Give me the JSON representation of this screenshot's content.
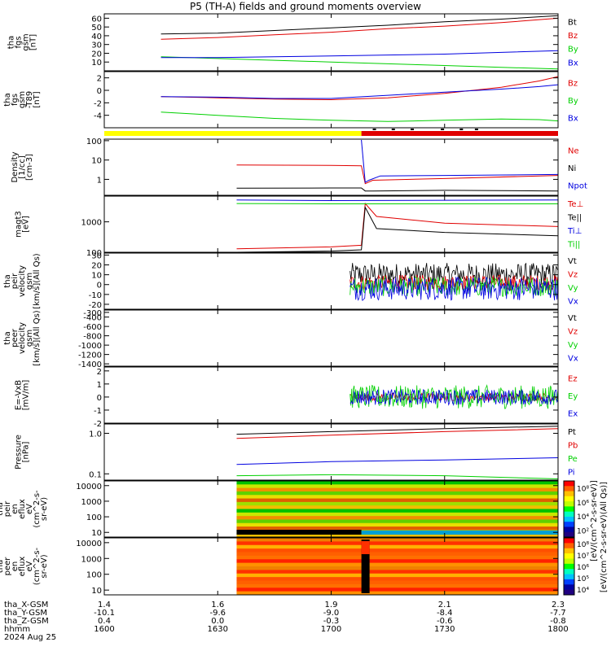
{
  "title": "P5 (TH-A) fields and ground moments overview",
  "colors": {
    "black": "#000000",
    "red": "#e00000",
    "green": "#00d000",
    "blue": "#0000e0",
    "yellow": "#ffff00",
    "axis": "#000000"
  },
  "chart_data": [
    {
      "type": "line",
      "panel_id": "fgs",
      "ylabel_lines": [
        "tha",
        "fgs",
        "gsm",
        "[nT]"
      ],
      "ylim": [
        0,
        65
      ],
      "ticks": [
        {
          "v": 10,
          "label": "10"
        },
        {
          "v": 20,
          "label": "20"
        },
        {
          "v": 30,
          "label": "30"
        },
        {
          "v": 40,
          "label": "40"
        },
        {
          "v": 50,
          "label": "50"
        },
        {
          "v": 60,
          "label": "60"
        }
      ],
      "x_start_hhmm": "1615",
      "series": [
        {
          "name": "Bt",
          "color": "black",
          "x": [
            1615,
            1630,
            1645,
            1700,
            1715,
            1730,
            1745,
            1800
          ],
          "values": [
            42,
            43,
            46,
            49,
            52,
            56,
            59,
            63
          ]
        },
        {
          "name": "Bz",
          "color": "red",
          "x": [
            1615,
            1630,
            1645,
            1700,
            1715,
            1730,
            1745,
            1800
          ],
          "values": [
            36,
            38,
            41,
            44,
            48,
            51,
            55,
            60
          ]
        },
        {
          "name": "By",
          "color": "green",
          "x": [
            1615,
            1630,
            1645,
            1700,
            1715,
            1730,
            1745,
            1800
          ],
          "values": [
            16,
            14,
            12,
            10,
            8,
            6,
            4,
            2
          ]
        },
        {
          "name": "Bx",
          "color": "blue",
          "x": [
            1615,
            1630,
            1645,
            1700,
            1715,
            1730,
            1745,
            1800
          ],
          "values": [
            15,
            15,
            16,
            17,
            18,
            19,
            21,
            23
          ]
        }
      ]
    },
    {
      "type": "line",
      "panel_id": "fgs-dip",
      "ylabel_lines": [
        "tha",
        "fgs",
        "gsm",
        "-T89",
        "[nT]"
      ],
      "ylim": [
        -6,
        3
      ],
      "ticks": [
        {
          "v": -4,
          "label": "-4"
        },
        {
          "v": -2,
          "label": "-2"
        },
        {
          "v": 0,
          "label": "0"
        },
        {
          "v": 2,
          "label": "2"
        }
      ],
      "series": [
        {
          "name": "Bz",
          "color": "red",
          "x": [
            1615,
            1630,
            1645,
            1700,
            1715,
            1730,
            1745,
            1755,
            1800
          ],
          "values": [
            -1,
            -1.2,
            -1.4,
            -1.5,
            -1.2,
            -0.5,
            0.5,
            1.5,
            2.2
          ]
        },
        {
          "name": "By",
          "color": "green",
          "x": [
            1615,
            1630,
            1645,
            1700,
            1715,
            1730,
            1745,
            1755,
            1800
          ],
          "values": [
            -3.5,
            -4,
            -4.5,
            -4.8,
            -5,
            -4.8,
            -4.6,
            -4.7,
            -4.9
          ]
        },
        {
          "name": "Bx",
          "color": "blue",
          "x": [
            1615,
            1630,
            1645,
            1700,
            1715,
            1730,
            1745,
            1755,
            1800
          ],
          "values": [
            -1,
            -1.1,
            -1.3,
            -1.3,
            -0.8,
            -0.3,
            0.2,
            0.6,
            0.9
          ]
        }
      ]
    },
    {
      "type": "line",
      "panel_id": "density",
      "scale": "log",
      "ylabel_lines": [
        "Density",
        "[1/cc]",
        "[cm-3]"
      ],
      "ylim": [
        0.15,
        120
      ],
      "ticks": [
        {
          "v": 1,
          "label": "1"
        },
        {
          "v": 10,
          "label": "10"
        },
        {
          "v": 100,
          "label": "100"
        }
      ],
      "series": [
        {
          "name": "Ne",
          "color": "red",
          "x": [
            1635,
            1700,
            1708,
            1709,
            1711,
            1730,
            1800
          ],
          "values": [
            5.5,
            5.3,
            5.0,
            0.6,
            0.9,
            1.1,
            1.6
          ]
        },
        {
          "name": "Ni",
          "color": "black",
          "x": [
            1635,
            1700,
            1708,
            1709,
            1711,
            1730,
            1800
          ],
          "values": [
            0.35,
            0.36,
            0.36,
            0.25,
            0.25,
            0.27,
            0.25
          ]
        },
        {
          "name": "Npot",
          "color": "blue",
          "x": [
            1708,
            1709,
            1710,
            1713,
            1730,
            1800
          ],
          "values": [
            110,
            0.7,
            0.9,
            1.5,
            1.6,
            1.8
          ]
        }
      ]
    },
    {
      "type": "line",
      "panel_id": "temperature",
      "scale": "log",
      "ylabel_lines": [
        "magt3",
        "[eV]"
      ],
      "ylim": [
        100,
        7000
      ],
      "ticks": [
        {
          "v": 100,
          "label": "100"
        },
        {
          "v": 1000,
          "label": "1000"
        }
      ],
      "series": [
        {
          "name": "Te⊥",
          "color": "red",
          "x": [
            1635,
            1700,
            1708,
            1709,
            1712,
            1730,
            1800
          ],
          "values": [
            130,
            150,
            170,
            4000,
            1500,
            900,
            700
          ]
        },
        {
          "name": "Te||",
          "color": "black",
          "x": [
            1635,
            1700,
            1708,
            1709,
            1712,
            1730,
            1800
          ],
          "values": [
            100,
            110,
            120,
            3000,
            600,
            450,
            350
          ]
        },
        {
          "name": "Ti⊥",
          "color": "blue",
          "x": [
            1635,
            1700,
            1730,
            1800
          ],
          "values": [
            5200,
            5000,
            5100,
            5200
          ]
        },
        {
          "name": "Ti||",
          "color": "green",
          "x": [
            1635,
            1700,
            1730,
            1800
          ],
          "values": [
            4000,
            3900,
            3900,
            3900
          ]
        }
      ]
    },
    {
      "type": "line",
      "panel_id": "peir-velocity",
      "ylabel_lines": [
        "tha",
        "peir",
        "velocity",
        "gsm",
        "[km/s](All Qs)"
      ],
      "ylim": [
        -25,
        32
      ],
      "ticks": [
        {
          "v": -20,
          "label": "-20"
        },
        {
          "v": -10,
          "label": "-10"
        },
        {
          "v": 0,
          "label": "0"
        },
        {
          "v": 10,
          "label": "10"
        },
        {
          "v": 20,
          "label": "20"
        },
        {
          "v": 30,
          "label": "30"
        }
      ],
      "data_range_hhmm": [
        1705,
        1800
      ],
      "series": [
        {
          "name": "Vt",
          "color": "black",
          "mean": 10,
          "spread": 12
        },
        {
          "name": "Vz",
          "color": "red",
          "mean": 2,
          "spread": 8
        },
        {
          "name": "Vy",
          "color": "green",
          "mean": -2,
          "spread": 10
        },
        {
          "name": "Vx",
          "color": "blue",
          "mean": -4,
          "spread": 12
        }
      ]
    },
    {
      "type": "line",
      "panel_id": "peer-velocity",
      "ylabel_lines": [
        "tha",
        "peer",
        "velocity",
        "gsm",
        "[km/s](All Qs)"
      ],
      "ylim": [
        -1450,
        -250
      ],
      "ticks": [
        {
          "v": -1400,
          "label": "-1400"
        },
        {
          "v": -1200,
          "label": "-1200"
        },
        {
          "v": -1000,
          "label": "-1000"
        },
        {
          "v": -800,
          "label": "-800"
        },
        {
          "v": -600,
          "label": "-600"
        },
        {
          "v": -400,
          "label": "-400"
        },
        {
          "v": -300,
          "label": "-300"
        }
      ],
      "series": [
        {
          "name": "Vt",
          "color": "black"
        },
        {
          "name": "Vz",
          "color": "red"
        },
        {
          "name": "Vy",
          "color": "green"
        },
        {
          "name": "Vx",
          "color": "blue"
        }
      ]
    },
    {
      "type": "line",
      "panel_id": "efield",
      "ylabel_lines": [
        "E=-VxB",
        "[mV/m]"
      ],
      "ylim": [
        -2,
        2.3
      ],
      "ticks": [
        {
          "v": -2,
          "label": "-2"
        },
        {
          "v": -1,
          "label": "-1"
        },
        {
          "v": 0,
          "label": "0"
        },
        {
          "v": 1,
          "label": "1"
        },
        {
          "v": 2,
          "label": "2"
        }
      ],
      "data_range_hhmm": [
        1705,
        1800
      ],
      "series": [
        {
          "name": "Ez",
          "color": "red",
          "mean": 0,
          "spread": 0.3
        },
        {
          "name": "Ey",
          "color": "green",
          "mean": 0,
          "spread": 0.9
        },
        {
          "name": "Ex",
          "color": "blue",
          "mean": 0,
          "spread": 0.6
        }
      ]
    },
    {
      "type": "line",
      "panel_id": "pressure",
      "scale": "log",
      "ylabel_lines": [
        "Pressure",
        "[nPa]"
      ],
      "ylim": [
        0.07,
        1.7
      ],
      "ticks": [
        {
          "v": 0.1,
          "label": "0.1"
        },
        {
          "v": 1,
          "label": "1.0"
        }
      ],
      "series": [
        {
          "name": "Pt",
          "color": "black",
          "x": [
            1635,
            1700,
            1730,
            1800
          ],
          "values": [
            0.95,
            1.1,
            1.3,
            1.5
          ]
        },
        {
          "name": "Pb",
          "color": "red",
          "x": [
            1635,
            1700,
            1730,
            1800
          ],
          "values": [
            0.75,
            0.9,
            1.1,
            1.3
          ]
        },
        {
          "name": "Pe",
          "color": "green",
          "x": [
            1635,
            1700,
            1730,
            1800
          ],
          "values": [
            0.09,
            0.095,
            0.09,
            0.075
          ]
        },
        {
          "name": "Pi",
          "color": "blue",
          "x": [
            1635,
            1700,
            1730,
            1800
          ],
          "values": [
            0.17,
            0.2,
            0.22,
            0.25
          ]
        }
      ]
    },
    {
      "type": "heatmap",
      "panel_id": "peir-spectrogram",
      "scale": "log",
      "ylabel_lines": [
        "tha",
        "peir",
        "en",
        "eflux",
        "eV",
        "(cm^2-s-",
        "sr-eV)"
      ],
      "ylim": [
        5,
        20000
      ],
      "ticks": [
        {
          "v": 10,
          "label": "10"
        },
        {
          "v": 100,
          "label": "100"
        },
        {
          "v": 1000,
          "label": "1000"
        },
        {
          "v": 10000,
          "label": "10000"
        }
      ],
      "colorbar_ticks": [
        "10²",
        "10⁴",
        "10⁶",
        "10⁸"
      ]
    },
    {
      "type": "heatmap",
      "panel_id": "peer-spectrogram",
      "scale": "log",
      "ylabel_lines": [
        "tha",
        "peer",
        "en",
        "eflux",
        "eV",
        "(cm^2-s-",
        "sr-eV)"
      ],
      "ylim": [
        5,
        20000
      ],
      "ticks": [
        {
          "v": 10,
          "label": "10"
        },
        {
          "v": 100,
          "label": "100"
        },
        {
          "v": 1000,
          "label": "1000"
        },
        {
          "v": 10000,
          "label": "10000"
        }
      ],
      "colorbar_ticks": [
        "10⁴",
        "10⁵",
        "10⁶",
        "10⁷",
        "10⁸"
      ]
    }
  ],
  "colorbar_label": "[eV/(cm^2-s-sr-eV)(All Qs)]",
  "colorbar_label2": "[eV/(cm^2-s-sr-eV)]",
  "xaxis": {
    "row_labels": [
      "tha_X-GSM",
      "tha_Y-GSM",
      "tha_Z-GSM",
      "hhmm",
      "2024 Aug 25"
    ],
    "ticks": [
      {
        "hhmm": 1600,
        "vals": [
          "1.4",
          "-10.1",
          "0.4",
          "1600"
        ]
      },
      {
        "hhmm": 1630,
        "vals": [
          "1.6",
          "-9.6",
          "0.0",
          "1630"
        ]
      },
      {
        "hhmm": 1700,
        "vals": [
          "1.9",
          "-9.0",
          "-0.3",
          "1700"
        ]
      },
      {
        "hhmm": 1730,
        "vals": [
          "2.1",
          "-8.4",
          "-0.6",
          "1730"
        ]
      },
      {
        "hhmm": 1800,
        "vals": [
          "2.3",
          "-7.7",
          "-0.8",
          "1800"
        ]
      }
    ]
  }
}
